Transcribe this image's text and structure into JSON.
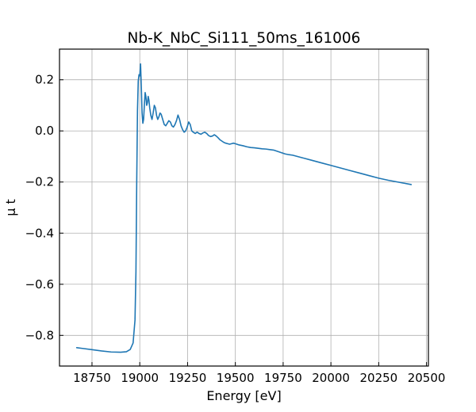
{
  "chart_data": {
    "type": "line",
    "title": "Nb-K_NbC_Si111_50ms_161006",
    "xlabel": "Energy [eV]",
    "ylabel": "μ t",
    "xlim": [
      18580,
      20510
    ],
    "ylim": [
      -0.92,
      0.32
    ],
    "grid": true,
    "legend": "none",
    "x_ticks": [
      {
        "value": 18750,
        "label": "18750"
      },
      {
        "value": 19000,
        "label": "19000"
      },
      {
        "value": 19250,
        "label": "19250"
      },
      {
        "value": 19500,
        "label": "19500"
      },
      {
        "value": 19750,
        "label": "19750"
      },
      {
        "value": 20000,
        "label": "20000"
      },
      {
        "value": 20250,
        "label": "20250"
      },
      {
        "value": 20500,
        "label": "20500"
      }
    ],
    "y_ticks": [
      {
        "value": 0.2,
        "label": "0.2"
      },
      {
        "value": 0.0,
        "label": "0.0"
      },
      {
        "value": -0.2,
        "label": "−0.2"
      },
      {
        "value": -0.4,
        "label": "−0.4"
      },
      {
        "value": -0.6,
        "label": "−0.6"
      },
      {
        "value": -0.8,
        "label": "−0.8"
      }
    ],
    "series": [
      {
        "color": "#1f77b4",
        "x": [
          18670,
          18700,
          18750,
          18800,
          18850,
          18900,
          18930,
          18950,
          18965,
          18975,
          18980,
          18984,
          18988,
          18992,
          18996,
          19000,
          19004,
          19008,
          19012,
          19016,
          19020,
          19024,
          19028,
          19032,
          19036,
          19040,
          19044,
          19048,
          19052,
          19058,
          19064,
          19070,
          19076,
          19082,
          19088,
          19094,
          19100,
          19106,
          19112,
          19120,
          19128,
          19136,
          19144,
          19152,
          19160,
          19168,
          19176,
          19184,
          19192,
          19200,
          19208,
          19216,
          19224,
          19232,
          19240,
          19248,
          19256,
          19264,
          19272,
          19280,
          19290,
          19300,
          19310,
          19320,
          19330,
          19340,
          19350,
          19360,
          19370,
          19380,
          19390,
          19400,
          19410,
          19420,
          19430,
          19440,
          19450,
          19460,
          19470,
          19480,
          19490,
          19500,
          19520,
          19540,
          19560,
          19580,
          19600,
          19620,
          19640,
          19660,
          19680,
          19700,
          19720,
          19740,
          19760,
          19780,
          19800,
          19850,
          19900,
          19950,
          20000,
          20050,
          20100,
          20150,
          20200,
          20250,
          20300,
          20350,
          20420
        ],
        "y": [
          -0.848,
          -0.851,
          -0.856,
          -0.861,
          -0.865,
          -0.866,
          -0.864,
          -0.855,
          -0.83,
          -0.74,
          -0.55,
          -0.2,
          0.08,
          0.195,
          0.22,
          0.215,
          0.262,
          0.175,
          0.07,
          0.03,
          0.045,
          0.1,
          0.15,
          0.135,
          0.1,
          0.11,
          0.135,
          0.12,
          0.09,
          0.06,
          0.045,
          0.07,
          0.1,
          0.09,
          0.06,
          0.045,
          0.055,
          0.07,
          0.065,
          0.045,
          0.025,
          0.02,
          0.03,
          0.04,
          0.035,
          0.02,
          0.015,
          0.025,
          0.04,
          0.062,
          0.045,
          0.02,
          0.005,
          -0.005,
          0.0,
          0.015,
          0.035,
          0.025,
          0.0,
          -0.005,
          -0.01,
          -0.005,
          -0.01,
          -0.013,
          -0.008,
          -0.005,
          -0.01,
          -0.018,
          -0.022,
          -0.02,
          -0.015,
          -0.02,
          -0.027,
          -0.035,
          -0.04,
          -0.045,
          -0.048,
          -0.05,
          -0.052,
          -0.05,
          -0.048,
          -0.05,
          -0.055,
          -0.058,
          -0.062,
          -0.065,
          -0.066,
          -0.068,
          -0.07,
          -0.071,
          -0.073,
          -0.075,
          -0.08,
          -0.085,
          -0.09,
          -0.093,
          -0.095,
          -0.105,
          -0.115,
          -0.125,
          -0.135,
          -0.145,
          -0.155,
          -0.165,
          -0.175,
          -0.185,
          -0.193,
          -0.2,
          -0.21
        ]
      }
    ]
  }
}
